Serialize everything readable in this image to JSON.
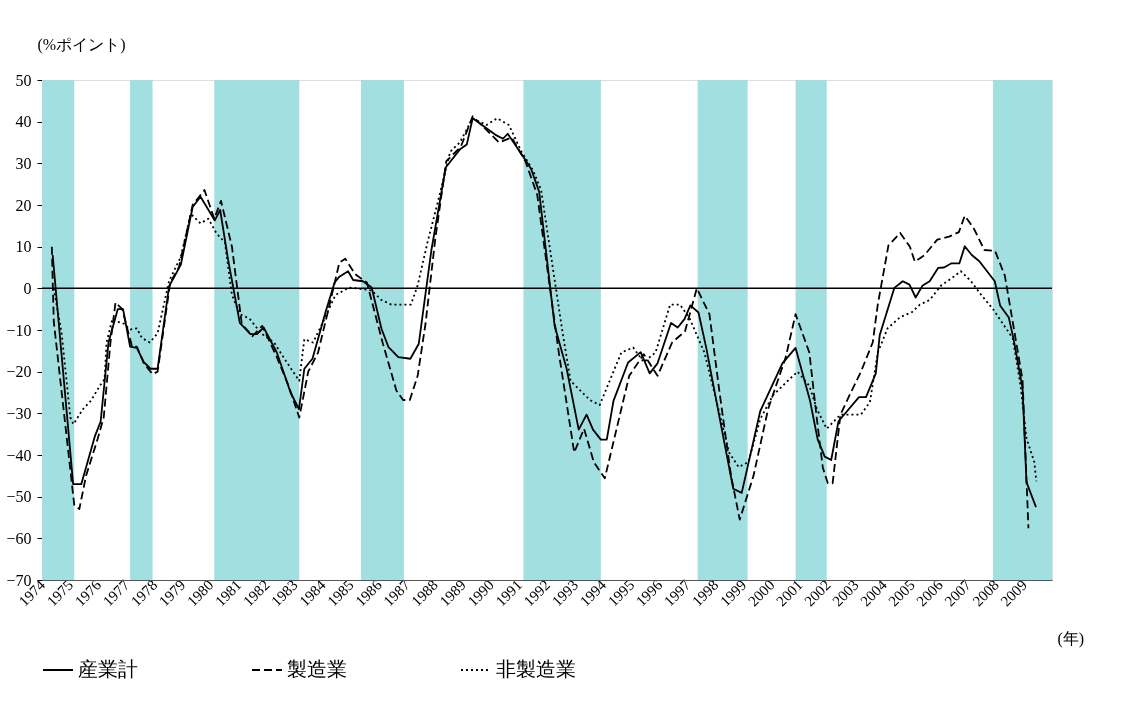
{
  "chart_data": {
    "type": "line",
    "ylabel": "(%ポイント)",
    "xlabel": "(年)",
    "xlim": [
      1974,
      2010
    ],
    "xticks": [
      1974,
      1975,
      1976,
      1977,
      1978,
      1979,
      1980,
      1981,
      1982,
      1983,
      1984,
      1985,
      1986,
      1987,
      1988,
      1989,
      1990,
      1991,
      1992,
      1993,
      1994,
      1995,
      1996,
      1997,
      1998,
      1999,
      2000,
      2001,
      2002,
      2003,
      2004,
      2005,
      2006,
      2007,
      2008,
      2009
    ],
    "ylim": [
      -70,
      50
    ],
    "yticks": [
      -70,
      -60,
      -50,
      -40,
      -30,
      -20,
      -10,
      0,
      10,
      20,
      30,
      40,
      50
    ],
    "grid": false,
    "legend": "bottom",
    "ref_lines": [
      {
        "axis": "y",
        "value": 0,
        "color": "#000000"
      }
    ],
    "bands": [
      {
        "axis": "x",
        "from": 1974,
        "to": 1975.15,
        "color": "#a2dfe0"
      },
      {
        "axis": "x",
        "from": 1977.14,
        "to": 1977.94,
        "color": "#a2dfe0"
      },
      {
        "axis": "x",
        "from": 1980.14,
        "to": 1983.17,
        "color": "#a2dfe0"
      },
      {
        "axis": "x",
        "from": 1985.37,
        "to": 1986.9,
        "color": "#a2dfe0"
      },
      {
        "axis": "x",
        "from": 1991.16,
        "to": 1993.92,
        "color": "#a2dfe0"
      },
      {
        "axis": "x",
        "from": 1997.37,
        "to": 1999.15,
        "color": "#a2dfe0"
      },
      {
        "axis": "x",
        "from": 2000.86,
        "to": 2001.97,
        "color": "#a2dfe0"
      },
      {
        "axis": "x",
        "from": 2007.9,
        "to": 2010,
        "color": "#a2dfe0"
      }
    ],
    "series": [
      {
        "name": "産業計",
        "color": "#000000",
        "line_style": "solid",
        "x": [
          1974.38,
          1975.11,
          1975.4,
          1975.88,
          1976.09,
          1976.37,
          1976.7,
          1976.89,
          1977.14,
          1977.38,
          1977.63,
          1977.87,
          1978.12,
          1978.53,
          1978.95,
          1979.37,
          1979.65,
          1980.16,
          1980.35,
          1980.63,
          1981.05,
          1981.43,
          1981.66,
          1981.9,
          1982.37,
          1982.86,
          1983.16,
          1983.35,
          1983.64,
          1984.12,
          1984.43,
          1984.6,
          1984.91,
          1985.09,
          1985.44,
          1985.75,
          1986.1,
          1986.35,
          1986.7,
          1987.13,
          1987.43,
          1987.88,
          1988.39,
          1988.89,
          1989.14,
          1989.35,
          1990.15,
          1990.43,
          1990.6,
          1991.13,
          1991.43,
          1991.72,
          1992.27,
          1992.7,
          1993.13,
          1993.41,
          1993.64,
          1993.92,
          1994.13,
          1994.37,
          1994.89,
          1995.34,
          1995.66,
          1995.94,
          1996.42,
          1996.66,
          1996.9,
          1997.11,
          1997.4,
          1997.68,
          1998.4,
          1998.64,
          1998.94,
          1999.6,
          2000.39,
          2000.86,
          2001.37,
          2001.65,
          2001.9,
          2002.13,
          2002.39,
          2003.12,
          2003.37,
          2003.72,
          2003.86,
          2004.38,
          2004.68,
          2004.92,
          2005.14,
          2005.39,
          2005.64,
          2005.94,
          2006.15,
          2006.42,
          2006.7,
          2006.89,
          2007.14,
          2007.41,
          2007.96,
          2008.15,
          2008.46,
          2008.64,
          2008.95,
          2009.09,
          2009.43
        ],
        "values": [
          8,
          -47,
          -47,
          -35.6,
          -32,
          -13,
          -5,
          -5,
          -14,
          -14.3,
          -17.7,
          -19.3,
          -19.3,
          0.5,
          5.7,
          19.5,
          22,
          16.3,
          18.8,
          7,
          -8.3,
          -11,
          -11,
          -9.4,
          -15.4,
          -25,
          -29,
          -19.3,
          -16.9,
          -5.4,
          1.4,
          2.8,
          4.1,
          2,
          1.7,
          0.2,
          -9.7,
          -14.1,
          -16.5,
          -16.9,
          -13.3,
          9.2,
          29,
          33.3,
          34.5,
          40.8,
          36.9,
          35.9,
          37.1,
          31.8,
          28.7,
          23.2,
          -8.9,
          -19.3,
          -33.9,
          -30.3,
          -33.9,
          -36.3,
          -36.3,
          -27,
          -17.8,
          -15.3,
          -20.4,
          -18,
          -8.3,
          -9.4,
          -7.4,
          -4.1,
          -5.8,
          -14.4,
          -39.8,
          -48.1,
          -49.1,
          -29.5,
          -18,
          -14.3,
          -26.8,
          -36.3,
          -40.4,
          -41.2,
          -31.9,
          -26.1,
          -26.1,
          -20.4,
          -11.2,
          0.1,
          1.7,
          0.9,
          -2.2,
          0.7,
          1.7,
          4.9,
          5,
          6,
          6,
          10.1,
          8,
          6.5,
          1.7,
          -4.1,
          -7,
          -12.5,
          -24,
          -46.5,
          -52.5
        ]
      },
      {
        "name": "製造業",
        "color": "#000000",
        "line_style": "dashed",
        "x": [
          1974.35,
          1974.42,
          1975.15,
          1975.33,
          1975.57,
          1975.99,
          1976.2,
          1976.44,
          1976.62,
          1976.86,
          1977.21,
          1977.38,
          1977.63,
          1977.94,
          1978.12,
          1978.57,
          1978.88,
          1979.37,
          1979.79,
          1980.14,
          1980.38,
          1980.77,
          1981.12,
          1981.5,
          1981.85,
          1982.37,
          1982.79,
          1983.17,
          1983.49,
          1983.84,
          1984.25,
          1984.6,
          1984.81,
          1985.16,
          1985.58,
          1986.14,
          1986.63,
          1986.87,
          1987.11,
          1987.39,
          1987.67,
          1988.02,
          1988.41,
          1988.93,
          1989.35,
          1989.77,
          1990.29,
          1990.74,
          1991.23,
          1991.65,
          1992.0,
          1992.42,
          1992.97,
          1993.32,
          1993.67,
          1994.06,
          1994.4,
          1994.93,
          1995.45,
          1995.94,
          1996.46,
          1996.92,
          1997.34,
          1997.79,
          1998.14,
          1998.56,
          1998.87,
          1999.36,
          1999.88,
          2000.51,
          2000.86,
          2001.35,
          2001.62,
          2001.83,
          2002.01,
          2002.18,
          2002.46,
          2002.78,
          2003.19,
          2003.61,
          2003.79,
          2004.17,
          2004.59,
          2004.94,
          2005.11,
          2005.46,
          2005.91,
          2006.33,
          2006.68,
          2006.89,
          2007.21,
          2007.59,
          2007.97,
          2008.32,
          2008.7,
          2008.95,
          2009.16
        ],
        "values": [
          10,
          -8,
          -52,
          -53,
          -45,
          -36,
          -31,
          -13,
          -3.4,
          -5,
          -14,
          -14,
          -18,
          -20.6,
          -20,
          1.4,
          5,
          20,
          23.6,
          16.7,
          21,
          10,
          -8.5,
          -11.5,
          -9,
          -16.5,
          -23.4,
          -31,
          -20,
          -15.4,
          -3.9,
          6.2,
          7.1,
          3.4,
          1.4,
          -13,
          -24.5,
          -26.8,
          -26.8,
          -21,
          -8.5,
          12,
          30.5,
          34,
          41.3,
          38.5,
          35,
          36.2,
          30.5,
          22.5,
          5.3,
          -15.4,
          -39.4,
          -33.7,
          -41.7,
          -45.6,
          -36,
          -21,
          -15.8,
          -21,
          -13,
          -10.3,
          0,
          -6.2,
          -24.5,
          -45,
          -55.5,
          -45,
          -29,
          -16.5,
          -6.2,
          -15.4,
          -31.4,
          -43,
          -46.8,
          -46.8,
          -30.3,
          -25.7,
          -20,
          -13,
          -3.9,
          10.3,
          13.3,
          9.9,
          6.4,
          8,
          11.7,
          12.4,
          13.5,
          17.4,
          14.4,
          9.2,
          9,
          3,
          -12,
          -22,
          -57.6
        ]
      },
      {
        "name": "非製造業",
        "color": "#000000",
        "line_style": "dotted",
        "x": [
          1974.42,
          1974.7,
          1975.01,
          1975.12,
          1975.46,
          1975.74,
          1976.06,
          1976.23,
          1976.3,
          1976.51,
          1976.69,
          1976.93,
          1977.14,
          1977.38,
          1977.56,
          1977.84,
          1978.12,
          1978.53,
          1978.95,
          1979.3,
          1979.65,
          1979.93,
          1980.21,
          1980.52,
          1980.77,
          1981.05,
          1981.4,
          1981.81,
          1982.27,
          1982.72,
          1983.17,
          1983.35,
          1983.66,
          1984.05,
          1984.46,
          1984.95,
          1985.41,
          1985.75,
          1986.1,
          1986.45,
          1987.15,
          1987.39,
          1987.74,
          1988.13,
          1988.55,
          1988.89,
          1989.35,
          1989.84,
          1990.22,
          1990.64,
          1991.09,
          1991.51,
          1991.79,
          1992.21,
          1992.56,
          1992.84,
          1993.18,
          1993.53,
          1993.88,
          1994.16,
          1994.65,
          1995.07,
          1995.45,
          1995.87,
          1996.39,
          1996.74,
          1997.09,
          1997.61,
          1998.03,
          1998.49,
          1998.83,
          1999.18,
          1999.6,
          2000.05,
          2000.58,
          2000.93,
          2001.35,
          2001.62,
          2001.97,
          2002.46,
          2003.19,
          2003.51,
          2003.79,
          2004.14,
          2004.59,
          2005.01,
          2005.29,
          2005.64,
          2006.05,
          2006.44,
          2006.75,
          2007.1,
          2007.48,
          2007.9,
          2008.25,
          2008.6,
          2008.88,
          2009.09,
          2009.37,
          2009.44
        ],
        "values": [
          0,
          -10.8,
          -31,
          -32.6,
          -29,
          -27,
          -23.4,
          -21.8,
          -13,
          -7.3,
          -8,
          -8.5,
          -9.9,
          -9.6,
          -11.9,
          -13,
          -10.8,
          1.8,
          7.6,
          17.9,
          15.6,
          16.7,
          13.3,
          11,
          -1.6,
          -6.2,
          -7.3,
          -10.8,
          -13,
          -17.7,
          -22.2,
          -12.2,
          -13,
          -7.6,
          -1.6,
          0.2,
          -0.2,
          -0.5,
          -2.8,
          -3.9,
          -3.9,
          0.7,
          11,
          21.3,
          32.8,
          35,
          40.8,
          39.2,
          40.8,
          39.2,
          32.8,
          28.2,
          23.6,
          4.8,
          -10.8,
          -22.2,
          -24.5,
          -26.8,
          -28,
          -23.4,
          -15.4,
          -14.2,
          -17.7,
          -15.4,
          -3.9,
          -3.9,
          -7.3,
          -15.4,
          -26.8,
          -39.4,
          -42.9,
          -41.7,
          -31.4,
          -25.7,
          -22.2,
          -20,
          -23.4,
          -29,
          -33.7,
          -30.3,
          -30.3,
          -27.3,
          -15.4,
          -9.6,
          -6.9,
          -5.7,
          -3.9,
          -2.8,
          0.7,
          2.5,
          4.1,
          1.8,
          -1.6,
          -5,
          -8.5,
          -12,
          -23.4,
          -36,
          -41.7,
          -46.3
        ]
      }
    ]
  }
}
